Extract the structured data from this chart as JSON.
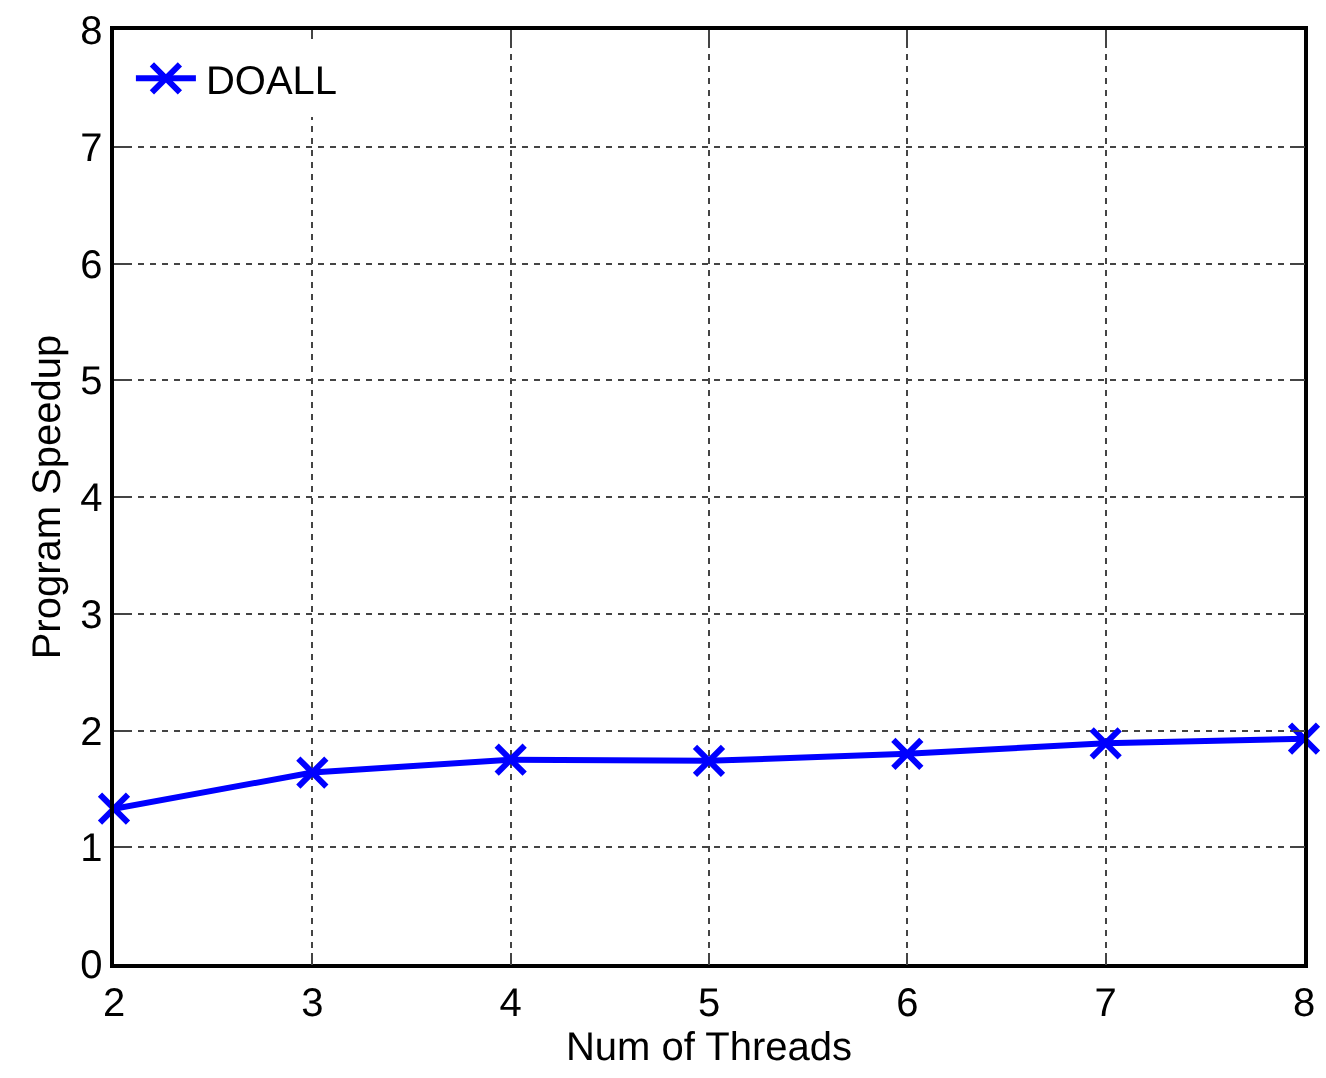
{
  "chart_data": {
    "type": "line",
    "xlabel": "Num of Threads",
    "ylabel": "Program Speedup",
    "x": [
      2,
      3,
      4,
      5,
      6,
      7,
      8
    ],
    "series": [
      {
        "name": "DOALL",
        "color": "#0000ff",
        "values": [
          1.33,
          1.64,
          1.75,
          1.74,
          1.8,
          1.89,
          1.93
        ]
      }
    ],
    "xlim": [
      2,
      8
    ],
    "xticks": [
      2,
      3,
      4,
      5,
      6,
      7,
      8
    ],
    "ylim": [
      0,
      8
    ],
    "yticks": [
      0,
      1,
      2,
      3,
      4,
      5,
      6,
      7,
      8
    ],
    "grid": true,
    "legend": "top left",
    "marker": "cross",
    "line_style": "solid"
  }
}
